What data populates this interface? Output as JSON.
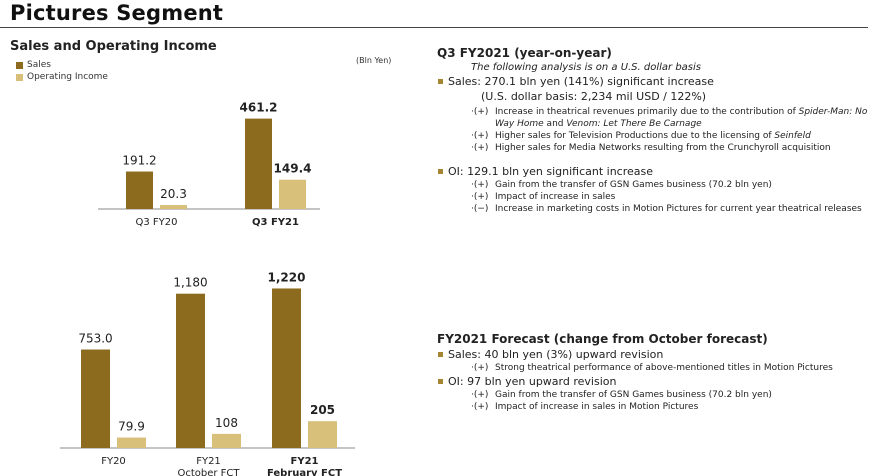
{
  "page": {
    "title": "Pictures Segment"
  },
  "chart_section": {
    "title": "Sales and Operating Income",
    "unit": "(Bln Yen)",
    "legend": [
      {
        "label": "Sales",
        "color": "#8c6b1f"
      },
      {
        "label": "Operating Income",
        "color": "#d9c07a"
      }
    ]
  },
  "chart_data": [
    {
      "type": "bar",
      "categories": [
        "Q3 FY20",
        "Q3 FY21"
      ],
      "category_bold": [
        false,
        true
      ],
      "series": [
        {
          "name": "Sales",
          "values": [
            191.2,
            461.2
          ],
          "labels": [
            "191.2",
            "461.2"
          ]
        },
        {
          "name": "Operating Income",
          "values": [
            20.3,
            149.4
          ],
          "labels": [
            "20.3",
            "149.4"
          ]
        }
      ],
      "label_bold": [
        false,
        true
      ],
      "ylim": [
        0,
        500
      ]
    },
    {
      "type": "bar",
      "categories": [
        "FY20",
        "FY21\nOctober FCT",
        "FY21\nFebruary FCT"
      ],
      "category_bold": [
        false,
        false,
        true
      ],
      "series": [
        {
          "name": "Sales",
          "values": [
            753.0,
            1180,
            1220
          ],
          "labels": [
            "753.0",
            "1,180",
            "1,220"
          ]
        },
        {
          "name": "Operating Income",
          "values": [
            79.9,
            108,
            205
          ],
          "labels": [
            "79.9",
            "108",
            "205"
          ]
        }
      ],
      "label_bold": [
        false,
        false,
        true
      ],
      "ylim": [
        0,
        1300
      ]
    }
  ],
  "colors": {
    "sales": "#8c6b1f",
    "oi": "#d9c07a",
    "bullet": "#a3862f"
  },
  "q3": {
    "title": "Q3 FY2021 (year-on-year)",
    "note": "The following analysis is on a U.S. dollar basis",
    "sales": {
      "line": "Sales: 270.1 bln yen (141%) significant increase",
      "sub": "(U.S. dollar basis: 2,234 mil USD / 122%)",
      "items": [
        {
          "prefix": "·(+)",
          "text_parts": [
            "Increase in theatrical revenues primarily due to the contribution of ",
            "Spider-Man: No Way Home",
            " and ",
            "Venom: Let There Be Carnage"
          ]
        },
        {
          "prefix": "·(+)",
          "text_parts": [
            "Higher sales for Television Productions due to the licensing of ",
            "Seinfeld"
          ]
        },
        {
          "prefix": "·(+)",
          "text": "Higher sales for Media Networks resulting from the Crunchyroll acquisition"
        }
      ]
    },
    "oi": {
      "line": "OI: 129.1 bln yen significant increase",
      "items": [
        {
          "prefix": "·(+)",
          "text": "Gain from the transfer of GSN Games business (70.2 bln yen)"
        },
        {
          "prefix": "·(+)",
          "text": "Impact of increase in sales"
        },
        {
          "prefix": "·(−)",
          "text": "Increase in marketing costs in Motion Pictures for current year theatrical releases"
        }
      ]
    }
  },
  "forecast": {
    "title": "FY2021 Forecast (change from October forecast)",
    "sales": {
      "line": "Sales: 40 bln yen (3%) upward revision",
      "items": [
        {
          "prefix": "·(+)",
          "text": "Strong theatrical performance of above-mentioned titles in Motion Pictures"
        }
      ]
    },
    "oi": {
      "line": "OI: 97 bln yen upward revision",
      "items": [
        {
          "prefix": "·(+)",
          "text": "Gain from the transfer of GSN Games business (70.2 bln yen)"
        },
        {
          "prefix": "·(+)",
          "text": "Impact of increase in sales in Motion Pictures"
        }
      ]
    }
  }
}
